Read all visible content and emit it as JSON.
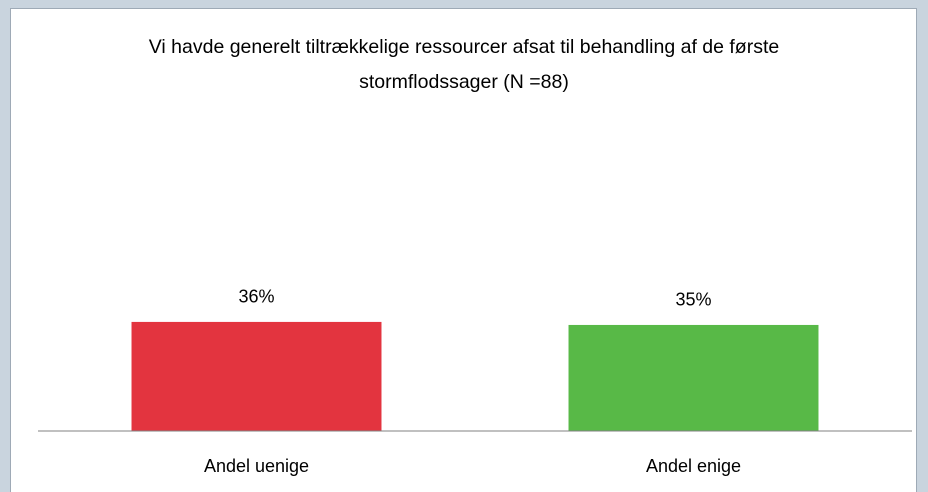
{
  "chart_data": {
    "type": "bar",
    "title": "Vi havde generelt tiltrækkelige ressourcer afsat til behandling af de første stormflodssager (N =88)",
    "categories": [
      "Andel uenige",
      "Andel enige"
    ],
    "values": [
      36,
      35
    ],
    "value_labels": [
      "36%",
      "35%"
    ],
    "colors": [
      "#e3343f",
      "#58b947"
    ],
    "ylim": [
      0,
      100
    ]
  }
}
